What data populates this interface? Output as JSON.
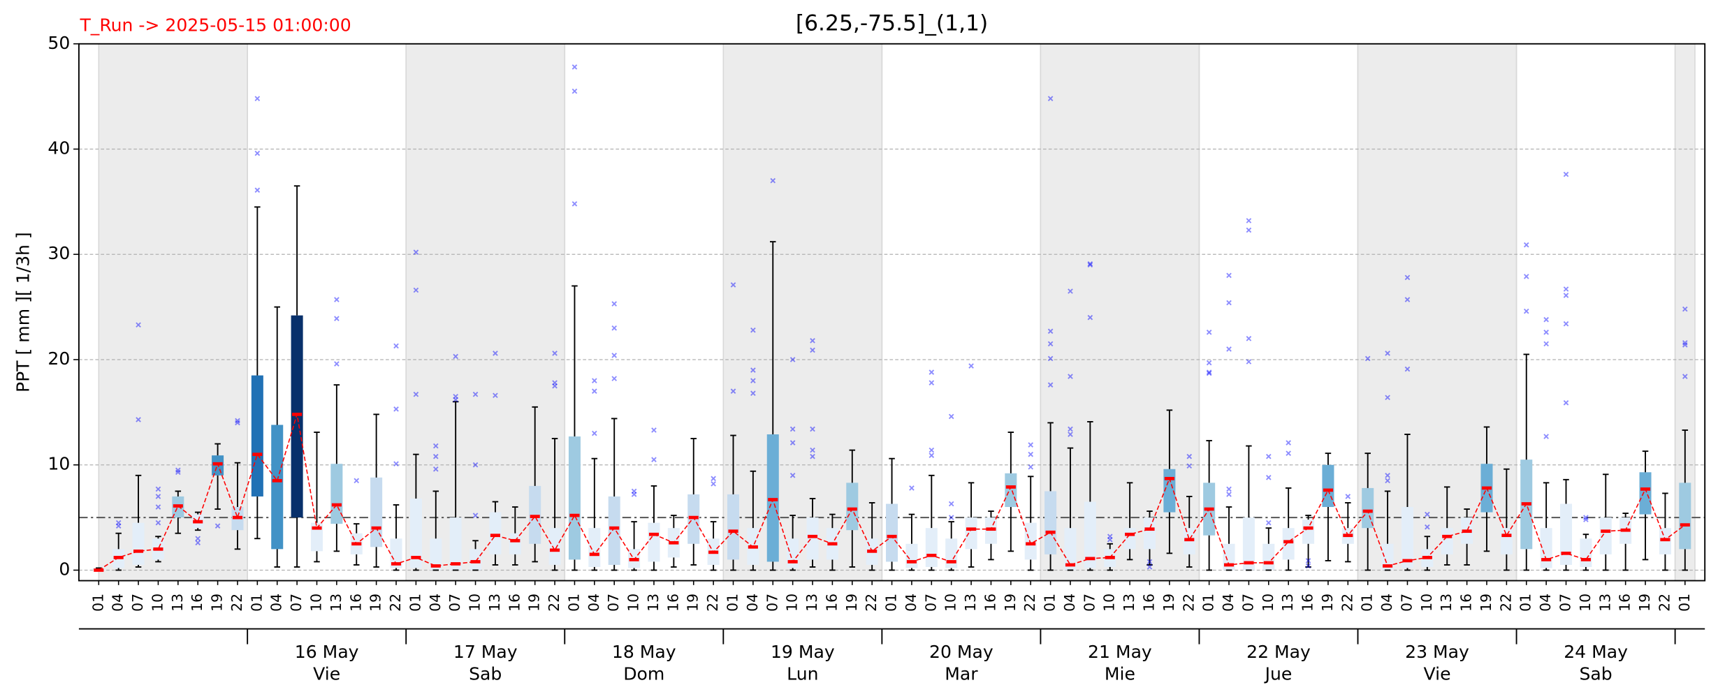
{
  "chart_data": {
    "type": "box",
    "title": "[6.25,-75.5]_(1,1)",
    "run_label": "T_Run -> 2025-05-15  01:00:00",
    "y_label": "PPT  [ mm ][ 1/3h ]",
    "categories": [
      "01",
      "04",
      "07",
      "10",
      "13",
      "16",
      "19",
      "22",
      "01",
      "04",
      "07",
      "10",
      "13",
      "16",
      "19",
      "22",
      "01",
      "04",
      "07",
      "10",
      "13",
      "16",
      "19",
      "22",
      "01",
      "04",
      "07",
      "10",
      "13",
      "16",
      "19",
      "22",
      "01",
      "04",
      "07",
      "10",
      "13",
      "16",
      "19",
      "22",
      "01",
      "04",
      "07",
      "10",
      "13",
      "16",
      "19",
      "22",
      "01",
      "04",
      "07",
      "10",
      "13",
      "16",
      "19",
      "22",
      "01",
      "04",
      "07",
      "10",
      "13",
      "16",
      "19",
      "22",
      "01",
      "04",
      "07",
      "10",
      "13",
      "16",
      "19",
      "22",
      "01",
      "04",
      "07",
      "10",
      "13",
      "16",
      "19",
      "22",
      "01"
    ],
    "days": [
      {
        "date": "16 May",
        "weekday": "Vie"
      },
      {
        "date": "17 May",
        "weekday": "Sab"
      },
      {
        "date": "18 May",
        "weekday": "Dom"
      },
      {
        "date": "19 May",
        "weekday": "Lun"
      },
      {
        "date": "20 May",
        "weekday": "Mar"
      },
      {
        "date": "21 May",
        "weekday": "Mie"
      },
      {
        "date": "22 May",
        "weekday": "Jue"
      },
      {
        "date": "23 May",
        "weekday": "Vie"
      },
      {
        "date": "24 May",
        "weekday": "Sab"
      }
    ],
    "whislo": [
      0,
      0,
      0.3,
      0.8,
      3.5,
      3.8,
      5.8,
      2,
      3,
      0.3,
      0.3,
      0.8,
      1.8,
      0.5,
      0.3,
      0,
      0,
      0,
      0,
      0,
      0.5,
      0.5,
      0.8,
      0,
      0,
      0,
      0,
      0,
      0,
      0.3,
      0.5,
      0,
      0,
      0,
      0,
      0,
      0.3,
      0,
      0.3,
      0,
      0,
      0,
      0,
      0,
      0.3,
      1,
      1.8,
      0,
      0,
      0,
      0,
      0,
      1,
      0.5,
      1.6,
      0.3,
      0,
      0,
      0,
      0,
      0,
      0.3,
      0.9,
      0.8,
      0,
      0,
      0,
      0,
      0.5,
      0.5,
      1.8,
      0,
      0,
      0,
      0,
      0,
      0,
      0,
      1,
      0,
      0
    ],
    "q1": [
      0,
      0.2,
      0.5,
      1,
      5,
      4,
      9,
      3.8,
      7,
      2,
      5,
      1.8,
      4.4,
      1.5,
      2.2,
      0.2,
      0.2,
      0,
      0,
      0,
      1.5,
      1.5,
      2.5,
      0.5,
      1,
      0.3,
      0.5,
      0.2,
      0.8,
      1.2,
      2.5,
      0.5,
      1,
      0.5,
      0.8,
      0.2,
      1,
      1,
      3.8,
      0.5,
      0.8,
      0.2,
      0.3,
      0.2,
      2,
      2.5,
      6,
      1,
      1.5,
      0,
      0.2,
      0.3,
      2,
      2,
      5.5,
      1.5,
      3.3,
      0,
      0,
      0,
      1,
      2.5,
      6,
      2.5,
      4,
      0,
      0.2,
      0.3,
      1.5,
      2.5,
      5.5,
      1.5,
      2,
      0.2,
      0.5,
      0.3,
      1.5,
      2.5,
      5.3,
      1.5,
      2
    ],
    "median": [
      0,
      1.2,
      1.8,
      2,
      6.1,
      4.6,
      10.1,
      5,
      11,
      8.5,
      14.8,
      4,
      6.2,
      2.5,
      4,
      0.6,
      1.2,
      0.4,
      0.6,
      0.8,
      3.3,
      2.8,
      5.1,
      1.9,
      5.2,
      1.5,
      4,
      1,
      3.4,
      2.6,
      5,
      1.7,
      3.7,
      2.2,
      6.7,
      0.8,
      3.2,
      2.5,
      5.8,
      1.8,
      3.2,
      0.8,
      1.4,
      0.8,
      3.9,
      3.9,
      7.9,
      2.5,
      3.6,
      0.5,
      1.1,
      1.2,
      3.4,
      3.9,
      8.7,
      2.9,
      5.8,
      0.5,
      0.7,
      0.7,
      2.7,
      4,
      7.6,
      3.3,
      5.6,
      0.4,
      0.9,
      1.2,
      3.2,
      3.7,
      7.8,
      3.3,
      6.3,
      1,
      1.6,
      1,
      3.7,
      3.8,
      7.7,
      2.9,
      4.3
    ],
    "q3": [
      0.2,
      2,
      4.5,
      3,
      7,
      5.3,
      10.9,
      6,
      18.5,
      13.8,
      24.2,
      4.5,
      10.1,
      3.5,
      8.8,
      3,
      6.8,
      3,
      5,
      2,
      5.5,
      3.5,
      8,
      4,
      12.7,
      4,
      7,
      2,
      4.5,
      4,
      7.2,
      3,
      7.2,
      4,
      12.9,
      3,
      5,
      4,
      8.3,
      3,
      6.3,
      2.5,
      4,
      3,
      5,
      5,
      9.2,
      4.5,
      7.5,
      4,
      6.5,
      2,
      4,
      5,
      9.6,
      4,
      8.3,
      2.5,
      5,
      2.5,
      4,
      4.8,
      10,
      4,
      7.8,
      2.5,
      6,
      2,
      4,
      5,
      10.1,
      4,
      10.5,
      4,
      6.3,
      3,
      5,
      5,
      9.3,
      4,
      8.3
    ],
    "whishi": [
      0.2,
      3.5,
      9,
      3.2,
      7.5,
      5.5,
      12,
      10.2,
      34.5,
      25,
      36.5,
      13.1,
      17.6,
      4.4,
      14.8,
      6.2,
      11,
      7.5,
      16,
      2.8,
      6.5,
      6,
      15.5,
      12.5,
      27,
      10.6,
      14.4,
      4.6,
      8,
      5.2,
      12.5,
      4.6,
      12.8,
      9.4,
      31.2,
      5.2,
      6.8,
      5.3,
      11.4,
      6.4,
      10.6,
      5.3,
      9,
      4.6,
      8.3,
      5.6,
      13.1,
      8.9,
      14,
      11.6,
      14.1,
      2.5,
      8.3,
      5.6,
      15.2,
      7,
      12.3,
      6,
      11.8,
      4,
      7.8,
      5.2,
      11.1,
      6.4,
      11.1,
      7.5,
      12.9,
      3.2,
      7.9,
      5.8,
      13.6,
      9.6,
      20.5,
      8.3,
      8.6,
      3.4,
      9.1,
      5.4,
      11.3,
      7.3,
      13.3
    ],
    "fliers": [
      [],
      [
        4.5,
        4.2
      ],
      [
        23.3,
        14.3
      ],
      [
        7.7,
        7,
        6,
        4.5
      ],
      [
        9.5,
        9.3
      ],
      [
        3,
        2.6
      ],
      [
        4.2
      ],
      [
        14.2,
        14
      ],
      [
        44.8,
        39.6,
        36.1
      ],
      [],
      [],
      [],
      [
        25.7,
        23.9,
        19.6
      ],
      [
        8.5
      ],
      [],
      [
        21.3,
        15.3,
        10.1
      ],
      [
        30.2,
        26.6,
        16.7
      ],
      [
        11.8,
        10.8,
        9.6
      ],
      [
        20.3,
        16.5,
        16.2
      ],
      [
        16.7,
        10,
        5.2
      ],
      [
        20.6,
        16.6
      ],
      [],
      [],
      [
        20.6,
        17.8,
        17.5
      ],
      [
        47.8,
        45.5,
        34.8
      ],
      [
        18,
        17,
        13
      ],
      [
        25.3,
        23,
        20.4,
        18.2
      ],
      [
        7.5,
        7.2
      ],
      [
        13.3,
        10.5
      ],
      [],
      [],
      [
        8.7,
        8.2
      ],
      [
        27.1,
        17
      ],
      [
        22.8,
        19,
        18,
        16.8
      ],
      [
        37
      ],
      [
        20,
        13.4,
        12.1,
        9
      ],
      [
        21.8,
        20.9,
        13.4,
        11.4,
        10.8
      ],
      [],
      [],
      [],
      [],
      [
        7.8
      ],
      [
        18.8,
        17.8,
        11.4,
        10.9
      ],
      [
        14.6,
        6.3,
        5
      ],
      [
        19.4
      ],
      [],
      [],
      [
        11.9,
        11,
        9.8
      ],
      [
        44.8,
        22.7,
        21.5,
        20.1,
        17.6
      ],
      [
        26.5,
        18.4,
        13.4,
        12.9
      ],
      [
        29.1,
        29,
        24
      ],
      [
        3.2,
        2.9
      ],
      [],
      [
        0.8,
        0.3
      ],
      [],
      [
        10.8,
        9.9
      ],
      [
        22.6,
        19.7,
        18.8,
        18.7
      ],
      [
        28,
        25.4,
        21,
        7.7,
        7.2
      ],
      [
        33.2,
        32.3,
        22,
        19.8
      ],
      [
        10.8,
        8.8,
        4.5
      ],
      [
        12.1,
        11.1
      ],
      [
        0.9,
        0.4
      ],
      [],
      [
        7
      ],
      [
        20.1
      ],
      [
        20.6,
        16.4,
        9,
        8.5
      ],
      [
        27.8,
        25.7,
        19.1
      ],
      [
        5.3,
        4.1
      ],
      [],
      [],
      [],
      [],
      [
        30.9,
        27.9,
        24.6
      ],
      [
        23.8,
        22.6,
        21.5,
        12.7
      ],
      [
        37.6,
        26.7,
        26.1,
        23.4,
        15.9
      ],
      [
        5,
        4.8
      ],
      [],
      [],
      [],
      [],
      [
        24.8,
        21.6,
        21.4,
        18.4
      ]
    ],
    "fills": [
      "#e3eef9",
      "#e3eef9",
      "#e3eef9",
      "#e3eef9",
      "#9ecae1",
      "#e3eef9",
      "#4292c6",
      "#c6dbef",
      "#2171b5",
      "#4292c6",
      "#08306b",
      "#e3eef9",
      "#9ecae1",
      "#e3eef9",
      "#c6dbef",
      "#e3eef9",
      "#e3eef9",
      "#e3eef9",
      "#e3eef9",
      "#e3eef9",
      "#e3eef9",
      "#e3eef9",
      "#c6dbef",
      "#e3eef9",
      "#9ecae1",
      "#e3eef9",
      "#c6dbef",
      "#e3eef9",
      "#e3eef9",
      "#e3eef9",
      "#c6dbef",
      "#e3eef9",
      "#c6dbef",
      "#e3eef9",
      "#6baed6",
      "#e3eef9",
      "#e3eef9",
      "#e3eef9",
      "#9ecae1",
      "#e3eef9",
      "#c6dbef",
      "#e3eef9",
      "#e3eef9",
      "#e3eef9",
      "#e3eef9",
      "#e3eef9",
      "#9ecae1",
      "#e3eef9",
      "#c6dbef",
      "#e3eef9",
      "#e3eef9",
      "#e3eef9",
      "#e3eef9",
      "#e3eef9",
      "#6baed6",
      "#e3eef9",
      "#9ecae1",
      "#e3eef9",
      "#e3eef9",
      "#e3eef9",
      "#e3eef9",
      "#e3eef9",
      "#6baed6",
      "#e3eef9",
      "#9ecae1",
      "#e3eef9",
      "#e3eef9",
      "#e3eef9",
      "#e3eef9",
      "#e3eef9",
      "#6baed6",
      "#e3eef9",
      "#9ecae1",
      "#e3eef9",
      "#e3eef9",
      "#e3eef9",
      "#e3eef9",
      "#e3eef9",
      "#6baed6",
      "#e3eef9",
      "#9ecae1"
    ],
    "median_color": "#ff0000",
    "flier_color": "#0000ff",
    "reference_line": 5,
    "ylim": [
      -1,
      50
    ],
    "yticks": [
      0,
      10,
      20,
      30,
      40,
      50
    ],
    "grid": true
  }
}
